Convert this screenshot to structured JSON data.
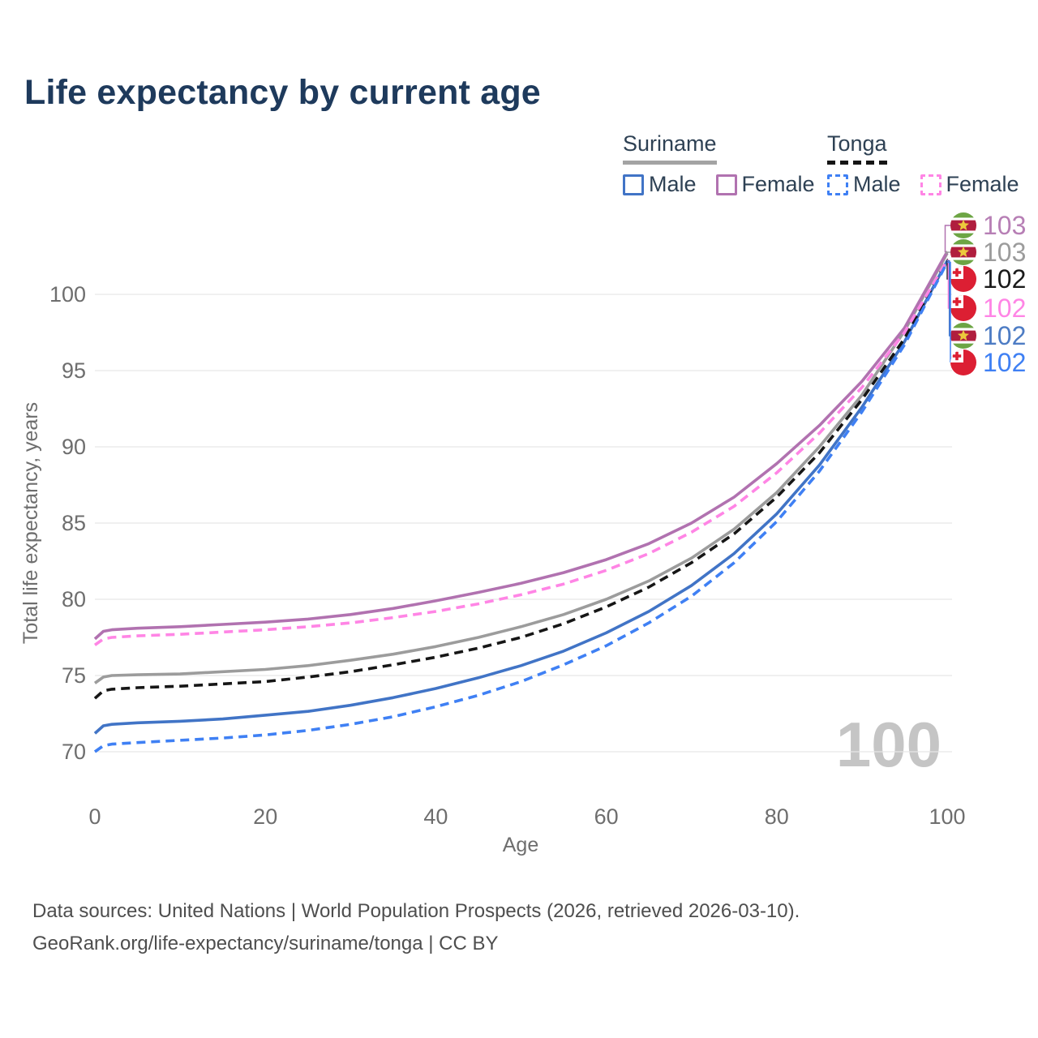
{
  "title": "Life expectancy by current age",
  "legend": {
    "groups": [
      {
        "country": "Suriname",
        "line_style": "solid",
        "underline_color": "#a3a3a3",
        "items": [
          {
            "label": "Male",
            "color": "#4174c6"
          },
          {
            "label": "Female",
            "color": "#b172b0"
          }
        ]
      },
      {
        "country": "Tonga",
        "line_style": "dashed",
        "underline_color": "#151515",
        "items": [
          {
            "label": "Male",
            "color": "#3f80f4"
          },
          {
            "label": "Female",
            "color": "#ff85e5"
          }
        ]
      }
    ]
  },
  "footer": {
    "line1": "Data sources: United Nations | World Population Prospects (2026, retrieved 2026-03-10).",
    "line2": "GeoRank.org/life-expectancy/suriname/tonga | CC BY"
  },
  "chart_data": {
    "type": "line",
    "title": "Life expectancy by current age",
    "xlabel": "Age",
    "ylabel": "Total life expectancy, years",
    "xlim": [
      0,
      100
    ],
    "ylim": [
      68.5,
      103.5
    ],
    "xticks": [
      0,
      20,
      40,
      60,
      80,
      100
    ],
    "yticks": [
      70,
      75,
      80,
      85,
      90,
      95,
      100
    ],
    "grid": "horizontal-only",
    "legend_position": "top-right",
    "watermark": "100",
    "watermark_color": "#c5c5c5",
    "grid_color": "#e8e8e8",
    "axis_text_color": "#6e6e6e",
    "x": [
      0,
      1,
      2,
      5,
      10,
      15,
      20,
      25,
      30,
      35,
      40,
      45,
      50,
      55,
      60,
      65,
      70,
      75,
      80,
      85,
      90,
      95,
      100
    ],
    "series": [
      {
        "name": "Suriname Female",
        "country": "Suriname",
        "sex": "Female",
        "flag": "suriname",
        "color": "#b172b0",
        "dashed": false,
        "end_label": "103",
        "end_label_color": "#b77fb5",
        "values": [
          77.4,
          77.9,
          78.0,
          78.1,
          78.2,
          78.35,
          78.5,
          78.7,
          79.0,
          79.4,
          79.9,
          80.45,
          81.05,
          81.75,
          82.6,
          83.65,
          85.0,
          86.7,
          88.9,
          91.4,
          94.3,
          97.8,
          102.8
        ]
      },
      {
        "name": "Suriname",
        "country": "Suriname",
        "sex": "Both",
        "flag": "suriname",
        "color": "#9c9c9c",
        "dashed": false,
        "end_label": "103",
        "end_label_color": "#9c9c9c",
        "values": [
          74.5,
          74.9,
          75.0,
          75.05,
          75.1,
          75.25,
          75.4,
          75.65,
          76.0,
          76.4,
          76.9,
          77.5,
          78.2,
          79.0,
          80.0,
          81.2,
          82.7,
          84.6,
          87.0,
          90.0,
          93.4,
          97.6,
          102.7
        ]
      },
      {
        "name": "Tonga",
        "country": "Tonga",
        "sex": "Both",
        "flag": "tonga",
        "color": "#161616",
        "dashed": true,
        "end_label": "102",
        "end_label_color": "#1a1a1a",
        "values": [
          73.5,
          74.0,
          74.1,
          74.2,
          74.3,
          74.45,
          74.6,
          74.9,
          75.25,
          75.7,
          76.2,
          76.8,
          77.5,
          78.4,
          79.5,
          80.8,
          82.4,
          84.3,
          86.7,
          89.6,
          93.1,
          97.1,
          102.3
        ]
      },
      {
        "name": "Tonga Female",
        "country": "Tonga",
        "sex": "Female",
        "flag": "tonga",
        "color": "#ff85e5",
        "dashed": true,
        "end_label": "102",
        "end_label_color": "#ff85e5",
        "values": [
          77.0,
          77.4,
          77.5,
          77.6,
          77.7,
          77.85,
          78.0,
          78.2,
          78.45,
          78.8,
          79.2,
          79.7,
          80.3,
          81.0,
          81.9,
          83.0,
          84.4,
          86.1,
          88.3,
          90.9,
          93.9,
          97.5,
          102.25
        ]
      },
      {
        "name": "Suriname Male",
        "country": "Suriname",
        "sex": "Male",
        "flag": "suriname",
        "color": "#4174c6",
        "dashed": false,
        "end_label": "102",
        "end_label_color": "#4d7cc4",
        "values": [
          71.2,
          71.7,
          71.8,
          71.9,
          72.0,
          72.15,
          72.4,
          72.65,
          73.05,
          73.55,
          74.15,
          74.85,
          75.65,
          76.6,
          77.8,
          79.2,
          80.9,
          83.0,
          85.6,
          88.8,
          92.6,
          96.9,
          102.2
        ]
      },
      {
        "name": "Tonga Male",
        "country": "Tonga",
        "sex": "Male",
        "flag": "tonga",
        "color": "#3f80f4",
        "dashed": true,
        "end_label": "102",
        "end_label_color": "#3f80f4",
        "values": [
          70.0,
          70.4,
          70.5,
          70.6,
          70.75,
          70.9,
          71.1,
          71.4,
          71.8,
          72.3,
          72.95,
          73.7,
          74.6,
          75.7,
          76.95,
          78.45,
          80.2,
          82.4,
          85.1,
          88.4,
          92.3,
          96.7,
          102.1
        ]
      }
    ]
  }
}
